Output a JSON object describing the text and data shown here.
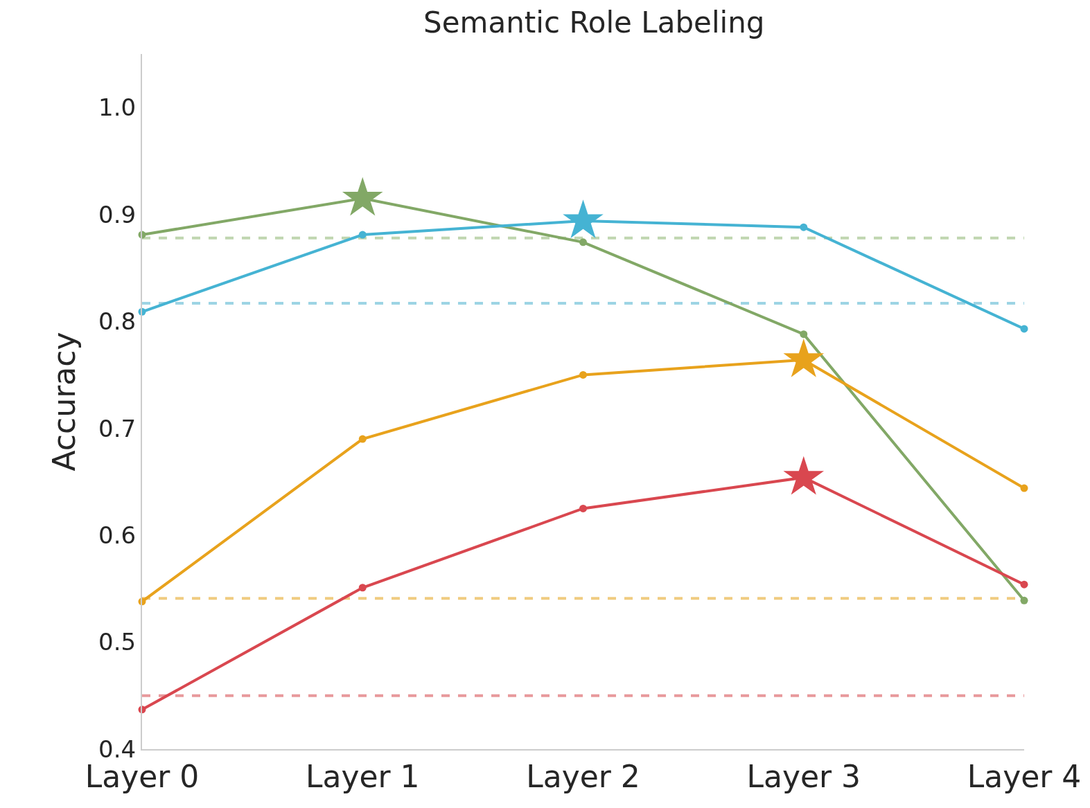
{
  "chart_data": {
    "type": "line",
    "title": "Semantic Role Labeling",
    "ylabel": "Accuracy",
    "categories": [
      "Layer 0",
      "Layer 1",
      "Layer 2",
      "Layer 3",
      "Layer 4"
    ],
    "series": [
      {
        "color": "#82a866",
        "values": [
          0.881,
          0.915,
          0.874,
          0.788,
          0.539
        ]
      },
      {
        "color": "#45b3d3",
        "values": [
          0.809,
          0.881,
          0.894,
          0.888,
          0.793
        ]
      },
      {
        "color": "#e8a21c",
        "values": [
          0.538,
          0.69,
          0.75,
          0.764,
          0.644
        ]
      },
      {
        "color": "#d9474f",
        "values": [
          0.437,
          0.551,
          0.625,
          0.654,
          0.554
        ]
      },
      {
        "type": "scatter",
        "marker": "star",
        "color": "#82a866",
        "x": [
          "Layer 1"
        ],
        "values": [
          0.915
        ]
      },
      {
        "type": "scatter",
        "marker": "star",
        "color": "#45b3d3",
        "x": [
          "Layer 2"
        ],
        "values": [
          0.894
        ]
      },
      {
        "type": "scatter",
        "marker": "star",
        "color": "#e8a21c",
        "x": [
          "Layer 3"
        ],
        "values": [
          0.764
        ]
      },
      {
        "type": "scatter",
        "marker": "star",
        "color": "#d9474f",
        "x": [
          "Layer 3"
        ],
        "values": [
          0.654
        ]
      }
    ],
    "ref_lines": [
      {
        "axis": "y",
        "value": 0.878,
        "color": "#c0d6b0",
        "line_style": "dashed"
      },
      {
        "axis": "y",
        "value": 0.817,
        "color": "#9dd4e4",
        "line_style": "dashed"
      },
      {
        "axis": "y",
        "value": 0.541,
        "color": "#f0cc80",
        "line_style": "dashed"
      },
      {
        "axis": "y",
        "value": 0.45,
        "color": "#e8999c",
        "line_style": "dashed"
      }
    ],
    "ylim": [
      0.4,
      1.05
    ],
    "yticks": [
      0.4,
      0.5,
      0.6,
      0.7,
      0.8,
      0.9,
      {
        "value": 1,
        "label": "1.0"
      }
    ],
    "grid": false,
    "marker": "circle",
    "line_style": "solid"
  }
}
